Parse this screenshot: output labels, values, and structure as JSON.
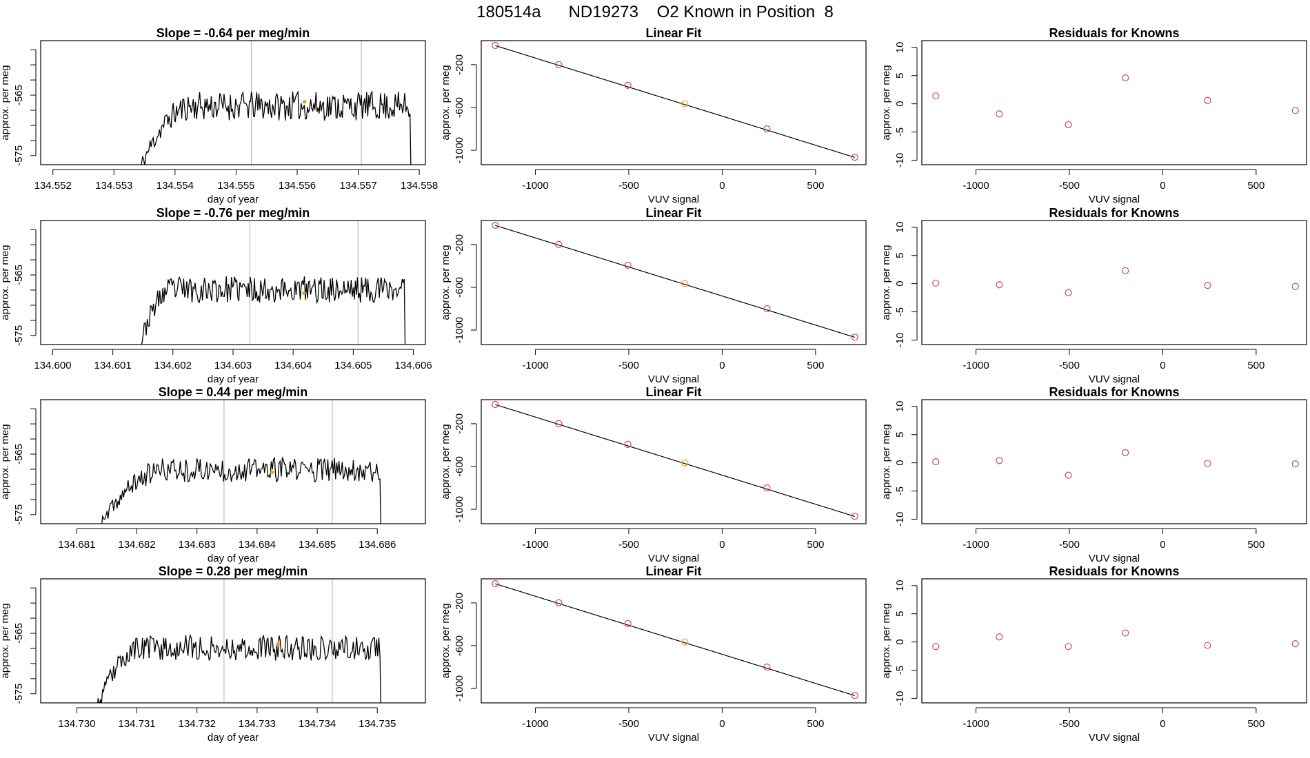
{
  "page_title": "180514a      ND19273    O2 Known in Position  8",
  "colors": {
    "line": "#000000",
    "point": "#cd4a4a",
    "highlight": "#e8a020",
    "vline": "#bbbbbb",
    "frame": "#000000"
  },
  "chart_data": [
    {
      "type": "line",
      "title": "Slope =  -0.64  per meg/min",
      "xlabel": "day of year",
      "ylabel": "approx. per meg",
      "xlim": [
        134.5518,
        134.5581
      ],
      "ylim": [
        -576.5,
        -556
      ],
      "xticks": [
        "134.552",
        "134.553",
        "134.554",
        "134.555",
        "134.556",
        "134.557",
        "134.558"
      ],
      "yticks": [
        "-565",
        "-575"
      ],
      "vlines": [
        134.55525,
        134.55705
      ],
      "trace": {
        "start": 134.5534,
        "end": 134.5579,
        "base": -566.8,
        "rise_days": 0.0009,
        "amplitude": 2.4,
        "seed": 11
      },
      "highlight": {
        "x": 134.55612,
        "y": -566.1
      }
    },
    {
      "type": "scatter",
      "title": "Linear Fit",
      "xlabel": "VUV signal",
      "ylabel": "approx. per meg",
      "xlim": [
        -1290,
        770
      ],
      "ylim": [
        -1135,
        25
      ],
      "xticks": [
        "-1000",
        "-500",
        "0",
        "500"
      ],
      "yticks": [
        "-200",
        "-600",
        "-1000"
      ],
      "x": [
        -1215,
        -875,
        -505,
        -200,
        240,
        710
      ],
      "y": [
        -20,
        -199,
        -393,
        -566,
        -800,
        -1066
      ],
      "highlight_index": 3,
      "fit": {
        "x0": -1215,
        "y0": -21,
        "x1": 710,
        "y1": -1067
      }
    },
    {
      "type": "scatter",
      "title": "Residuals for Knowns",
      "xlabel": "VUV signal",
      "ylabel": "approx. per meg",
      "xlim": [
        -1290,
        770
      ],
      "ylim": [
        -10.8,
        11.2
      ],
      "xticks": [
        "-1000",
        "-500",
        "0",
        "500"
      ],
      "yticks": [
        "10",
        "5",
        "0",
        "-5",
        "-10"
      ],
      "x": [
        -1215,
        -875,
        -505,
        -200,
        240,
        710
      ],
      "y": [
        1.4,
        -1.8,
        -3.7,
        4.6,
        0.6,
        -1.2
      ]
    },
    {
      "type": "line",
      "title": "Slope =  -0.76  per meg/min",
      "xlabel": "day of year",
      "ylabel": "approx. per meg",
      "xlim": [
        134.5998,
        134.6062
      ],
      "ylim": [
        -576.5,
        -556
      ],
      "xticks": [
        "134.600",
        "134.601",
        "134.602",
        "134.603",
        "134.604",
        "134.605",
        "134.606"
      ],
      "yticks": [
        "-565",
        "-575"
      ],
      "vlines": [
        134.60328,
        134.60508
      ],
      "trace": {
        "start": 134.6014,
        "end": 134.6059,
        "base": -567.4,
        "rise_days": 0.0006,
        "amplitude": 2.2,
        "seed": 23
      },
      "highlight": {
        "x": 134.60418,
        "y": -568.0
      }
    },
    {
      "type": "scatter",
      "title": "Linear Fit",
      "xlabel": "VUV signal",
      "ylabel": "approx. per meg",
      "xlim": [
        -1290,
        770
      ],
      "ylim": [
        -1135,
        25
      ],
      "xticks": [
        "-1000",
        "-500",
        "0",
        "500"
      ],
      "yticks": [
        "-200",
        "-600",
        "-1000"
      ],
      "x": [
        -1215,
        -875,
        -505,
        -200,
        240,
        710
      ],
      "y": [
        -20,
        -199,
        -393,
        -566,
        -800,
        -1066
      ],
      "highlight_index": 3,
      "fit": {
        "x0": -1215,
        "y0": -21,
        "x1": 710,
        "y1": -1067
      }
    },
    {
      "type": "scatter",
      "title": "Residuals for Knowns",
      "xlabel": "VUV signal",
      "ylabel": "approx. per meg",
      "xlim": [
        -1290,
        770
      ],
      "ylim": [
        -10.8,
        11.2
      ],
      "xticks": [
        "-1000",
        "-500",
        "0",
        "500"
      ],
      "yticks": [
        "10",
        "5",
        "0",
        "-5",
        "-10"
      ],
      "x": [
        -1215,
        -875,
        -505,
        -200,
        240,
        710
      ],
      "y": [
        0.1,
        -0.2,
        -1.6,
        2.3,
        -0.3,
        -0.5
      ]
    },
    {
      "type": "line",
      "title": "Slope =  0.44  per meg/min",
      "xlabel": "day of year",
      "ylabel": "approx. per meg",
      "xlim": [
        134.6804,
        134.6868
      ],
      "ylim": [
        -576.5,
        -556
      ],
      "xticks": [
        "134.681",
        "134.682",
        "134.683",
        "134.684",
        "134.685",
        "134.686"
      ],
      "yticks": [
        "-565",
        "-575"
      ],
      "vlines": [
        134.68345,
        134.68525
      ],
      "trace": {
        "start": 134.6813,
        "end": 134.6861,
        "base": -567.6,
        "rise_days": 0.0012,
        "amplitude": 2.0,
        "seed": 37
      },
      "highlight": {
        "x": 134.68425,
        "y": -568.0
      }
    },
    {
      "type": "scatter",
      "title": "Linear Fit",
      "xlabel": "VUV signal",
      "ylabel": "approx. per meg",
      "xlim": [
        -1290,
        770
      ],
      "ylim": [
        -1135,
        25
      ],
      "xticks": [
        "-1000",
        "-500",
        "0",
        "500"
      ],
      "yticks": [
        "-200",
        "-600",
        "-1000"
      ],
      "x": [
        -1215,
        -875,
        -505,
        -200,
        240,
        710
      ],
      "y": [
        -20,
        -199,
        -393,
        -566,
        -800,
        -1066
      ],
      "highlight_index": 3,
      "fit": {
        "x0": -1215,
        "y0": -21,
        "x1": 710,
        "y1": -1067
      }
    },
    {
      "type": "scatter",
      "title": "Residuals for Knowns",
      "xlabel": "VUV signal",
      "ylabel": "approx. per meg",
      "xlim": [
        -1290,
        770
      ],
      "ylim": [
        -10.8,
        11.2
      ],
      "xticks": [
        "-1000",
        "-500",
        "0",
        "500"
      ],
      "yticks": [
        "10",
        "5",
        "0",
        "-5",
        "-10"
      ],
      "x": [
        -1215,
        -875,
        -505,
        -200,
        240,
        710
      ],
      "y": [
        0.2,
        0.4,
        -2.2,
        1.8,
        -0.1,
        -0.2
      ]
    },
    {
      "type": "line",
      "title": "Slope =  0.28  per meg/min",
      "xlabel": "day of year",
      "ylabel": "approx. per meg",
      "xlim": [
        134.7294,
        134.7358
      ],
      "ylim": [
        -576.5,
        -556
      ],
      "xticks": [
        "134.730",
        "134.731",
        "134.732",
        "134.733",
        "134.734",
        "134.735"
      ],
      "yticks": [
        "-565",
        "-575"
      ],
      "vlines": [
        134.73245,
        134.73425
      ],
      "trace": {
        "start": 134.7303,
        "end": 134.7351,
        "base": -567.4,
        "rise_days": 0.0008,
        "amplitude": 2.1,
        "seed": 53
      },
      "highlight": {
        "x": 134.73335,
        "y": -566.8
      }
    },
    {
      "type": "scatter",
      "title": "Linear Fit",
      "xlabel": "VUV signal",
      "ylabel": "approx. per meg",
      "xlim": [
        -1290,
        770
      ],
      "ylim": [
        -1135,
        25
      ],
      "xticks": [
        "-1000",
        "-500",
        "0",
        "500"
      ],
      "yticks": [
        "-200",
        "-600",
        "-1000"
      ],
      "x": [
        -1215,
        -875,
        -505,
        -200,
        240,
        710
      ],
      "y": [
        -20,
        -199,
        -393,
        -566,
        -800,
        -1066
      ],
      "highlight_index": 3,
      "fit": {
        "x0": -1215,
        "y0": -21,
        "x1": 710,
        "y1": -1067
      }
    },
    {
      "type": "scatter",
      "title": "Residuals for Knowns",
      "xlabel": "VUV signal",
      "ylabel": "approx. per meg",
      "xlim": [
        -1290,
        770
      ],
      "ylim": [
        -10.8,
        11.2
      ],
      "xticks": [
        "-1000",
        "-500",
        "0",
        "500"
      ],
      "yticks": [
        "10",
        "5",
        "0",
        "-5",
        "-10"
      ],
      "x": [
        -1215,
        -875,
        -505,
        -200,
        240,
        710
      ],
      "y": [
        -0.8,
        0.9,
        -0.8,
        1.6,
        -0.6,
        -0.3
      ]
    }
  ]
}
